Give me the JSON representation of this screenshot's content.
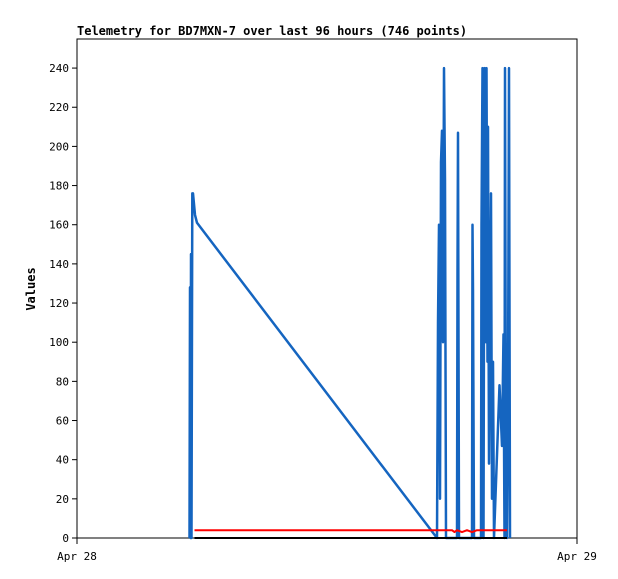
{
  "chart_data": {
    "type": "line",
    "title": "Telemetry for BD7MXN-7 over last 96 hours (746 points)",
    "xlabel": "",
    "ylabel": "Values",
    "x_tick_labels": [
      "Apr 28",
      "Apr 29"
    ],
    "x_domain": [
      "Apr 28",
      "Apr 29"
    ],
    "y_ticks": [
      0,
      20,
      40,
      60,
      80,
      100,
      120,
      140,
      160,
      180,
      200,
      220,
      240
    ],
    "ylim": [
      0,
      255
    ],
    "grid": false,
    "legend": "none",
    "series": [
      {
        "color": "#1565c0",
        "points": [
          [
            0.225,
            0
          ],
          [
            0.226,
            128
          ],
          [
            0.227,
            0
          ],
          [
            0.228,
            145
          ],
          [
            0.229,
            0
          ],
          [
            0.2305,
            176
          ],
          [
            0.232,
            176
          ],
          [
            0.236,
            165
          ],
          [
            0.24,
            161
          ],
          [
            0.72,
            0
          ],
          [
            0.722,
            110
          ],
          [
            0.724,
            160
          ],
          [
            0.726,
            20
          ],
          [
            0.728,
            192
          ],
          [
            0.73,
            208
          ],
          [
            0.732,
            100
          ],
          [
            0.734,
            240
          ],
          [
            0.736,
            183
          ],
          [
            0.738,
            0
          ],
          [
            0.76,
            0
          ],
          [
            0.761,
            136
          ],
          [
            0.762,
            207
          ],
          [
            0.764,
            0
          ],
          [
            0.79,
            0
          ],
          [
            0.791,
            160
          ],
          [
            0.792,
            127
          ],
          [
            0.794,
            0
          ],
          [
            0.808,
            0
          ],
          [
            0.809,
            160
          ],
          [
            0.811,
            240
          ],
          [
            0.813,
            0
          ],
          [
            0.815,
            240
          ],
          [
            0.816,
            221
          ],
          [
            0.817,
            220
          ],
          [
            0.818,
            100
          ],
          [
            0.819,
            240
          ],
          [
            0.821,
            90
          ],
          [
            0.822,
            210
          ],
          [
            0.824,
            38
          ],
          [
            0.826,
            110
          ],
          [
            0.828,
            176
          ],
          [
            0.83,
            20
          ],
          [
            0.832,
            90
          ],
          [
            0.834,
            0
          ],
          [
            0.845,
            78
          ],
          [
            0.85,
            47
          ],
          [
            0.853,
            104
          ],
          [
            0.855,
            0
          ],
          [
            0.856,
            240
          ],
          [
            0.858,
            27
          ],
          [
            0.86,
            0
          ],
          [
            0.862,
            70
          ],
          [
            0.864,
            240
          ],
          [
            0.866,
            0
          ]
        ]
      },
      {
        "color": "#ff0000",
        "points": [
          [
            0.235,
            4
          ],
          [
            0.75,
            4
          ],
          [
            0.755,
            3
          ],
          [
            0.76,
            4
          ],
          [
            0.77,
            3
          ],
          [
            0.78,
            4
          ],
          [
            0.79,
            3
          ],
          [
            0.8,
            4
          ],
          [
            0.86,
            4
          ]
        ]
      },
      {
        "color": "#000000",
        "points": [
          [
            0.235,
            0
          ],
          [
            0.86,
            0
          ]
        ]
      }
    ]
  }
}
